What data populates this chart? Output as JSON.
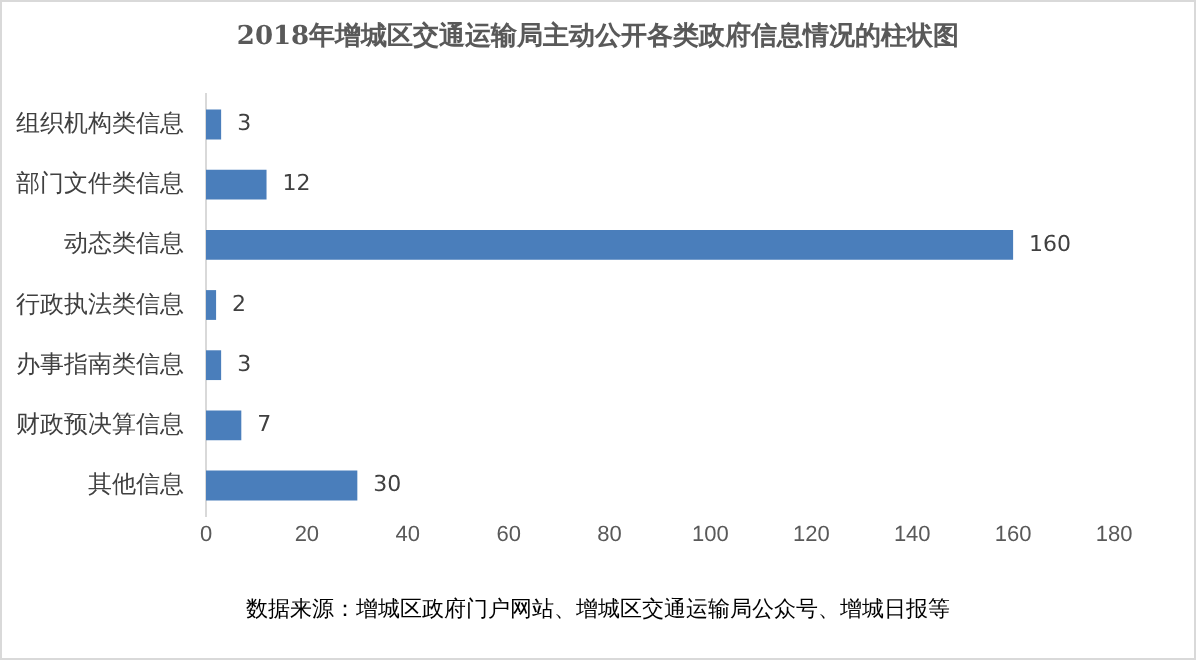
{
  "chart_data": {
    "type": "bar",
    "orientation": "horizontal",
    "title": "2018年增城区交通运输局主动公开各类政府信息情况的柱状图",
    "categories": [
      "组织机构类信息",
      "部门文件类信息",
      "动态类信息",
      "行政执法类信息",
      "办事指南类信息",
      "财政预决算信息",
      "其他信息"
    ],
    "values": [
      3,
      12,
      160,
      2,
      3,
      7,
      30
    ],
    "color": "#4a7ebb",
    "xlim": [
      0,
      180
    ],
    "xticks": [
      0,
      20,
      40,
      60,
      80,
      100,
      120,
      140,
      160,
      180
    ],
    "grid": false,
    "legend": false,
    "data_labels": true,
    "annotations": [
      "数据来源：增城区政府门户网站、增城区交通运输局公众号、增城日报等"
    ]
  }
}
